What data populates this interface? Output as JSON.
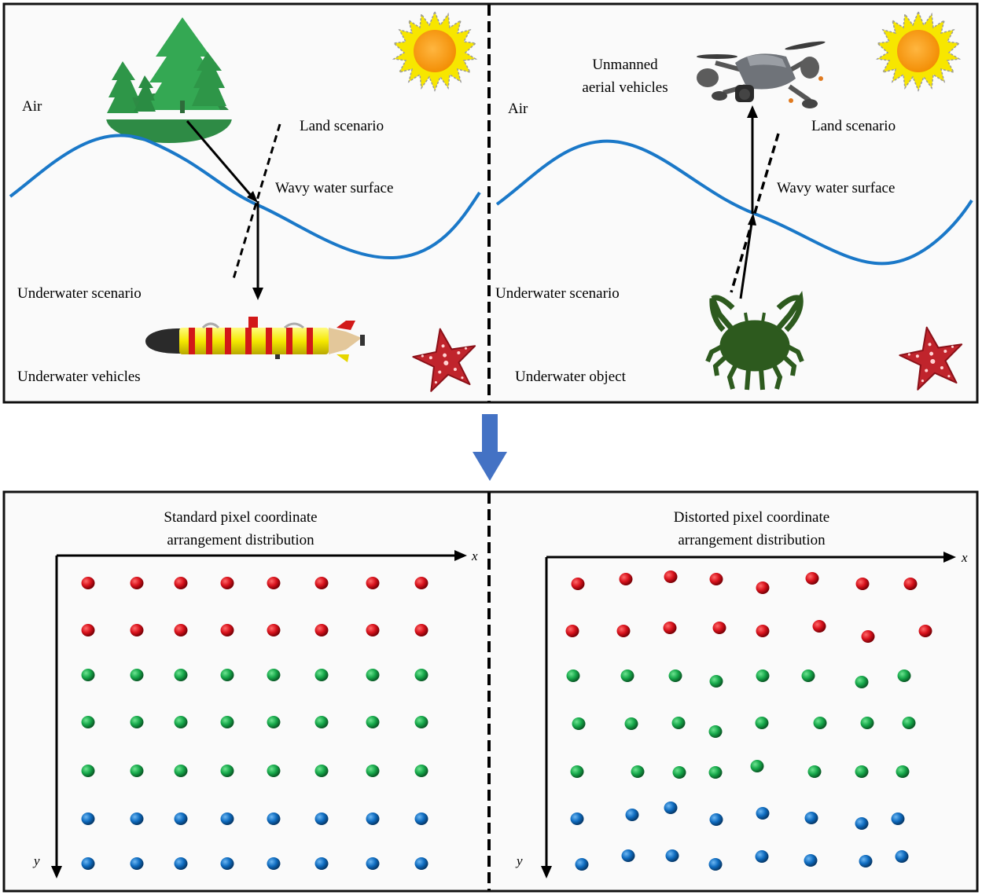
{
  "top_left": {
    "air": "Air",
    "land_scenario": "Land scenario",
    "water_surface": "Wavy water surface",
    "underwater_scenario": "Underwater scenario",
    "underwater_vehicles": "Underwater vehicles"
  },
  "top_right": {
    "air": "Air",
    "uav_line1": "Unmanned",
    "uav_line2": "aerial vehicles",
    "land_scenario": "Land scenario",
    "water_surface": "Wavy water surface",
    "underwater_scenario": "Underwater scenario",
    "underwater_object": "Underwater object"
  },
  "bottom_left": {
    "title_line1": "Standard pixel coordinate",
    "title_line2": "arrangement distribution",
    "x_axis": "x",
    "y_axis": "y"
  },
  "bottom_right": {
    "title_line1": "Distorted pixel coordinate",
    "title_line2": "arrangement distribution",
    "x_axis": "x",
    "y_axis": "y"
  },
  "dot_colors": {
    "red": "#d8121c",
    "green": "#16a84a",
    "blue": "#0f6cc0"
  },
  "dot_rows": [
    "red",
    "red",
    "green",
    "green",
    "green",
    "blue",
    "blue"
  ],
  "icons": [
    "sun-icon",
    "trees-icon",
    "water-wave-icon",
    "auv-icon",
    "starfish-icon",
    "drone-icon",
    "crab-icon",
    "down-arrow-icon"
  ]
}
